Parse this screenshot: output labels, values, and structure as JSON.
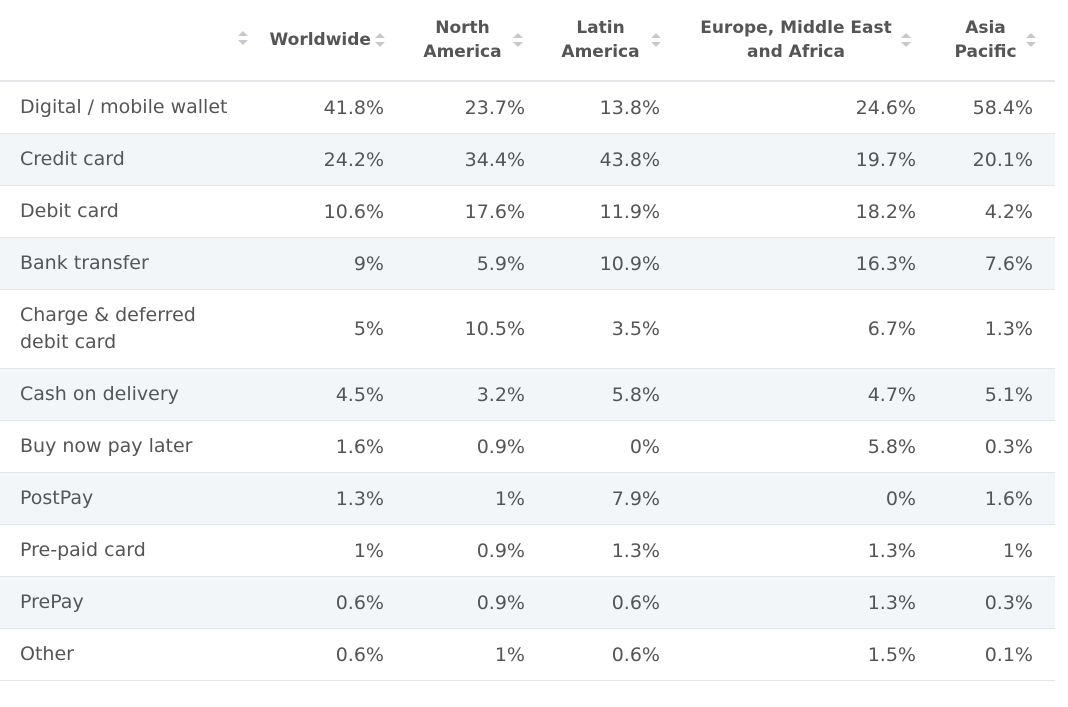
{
  "table": {
    "headers": [
      "Worldwide",
      "North America",
      "Latin America",
      "Europe, Middle East and Africa",
      "Asia Pacific"
    ],
    "rows": [
      [
        "Digital / mobile wallet",
        "41.8%",
        "23.7%",
        "13.8%",
        "24.6%",
        "58.4%"
      ],
      [
        "Credit card",
        "24.2%",
        "34.4%",
        "43.8%",
        "19.7%",
        "20.1%"
      ],
      [
        "Debit card",
        "10.6%",
        "17.6%",
        "11.9%",
        "18.2%",
        "4.2%"
      ],
      [
        "Bank transfer",
        "9%",
        "5.9%",
        "10.9%",
        "16.3%",
        "7.6%"
      ],
      [
        "Charge & deferred debit card",
        "5%",
        "10.5%",
        "3.5%",
        "6.7%",
        "1.3%"
      ],
      [
        "Cash on delivery",
        "4.5%",
        "3.2%",
        "5.8%",
        "4.7%",
        "5.1%"
      ],
      [
        "Buy now pay later",
        "1.6%",
        "0.9%",
        "0%",
        "5.8%",
        "0.3%"
      ],
      [
        "PostPay",
        "1.3%",
        "1%",
        "7.9%",
        "0%",
        "1.6%"
      ],
      [
        "Pre-paid card",
        "1%",
        "0.9%",
        "1.3%",
        "1.3%",
        "1%"
      ],
      [
        "PrePay",
        "0.6%",
        "0.9%",
        "0.6%",
        "1.3%",
        "0.3%"
      ],
      [
        "Other",
        "0.6%",
        "1%",
        "0.6%",
        "1.5%",
        "0.1%"
      ]
    ]
  }
}
